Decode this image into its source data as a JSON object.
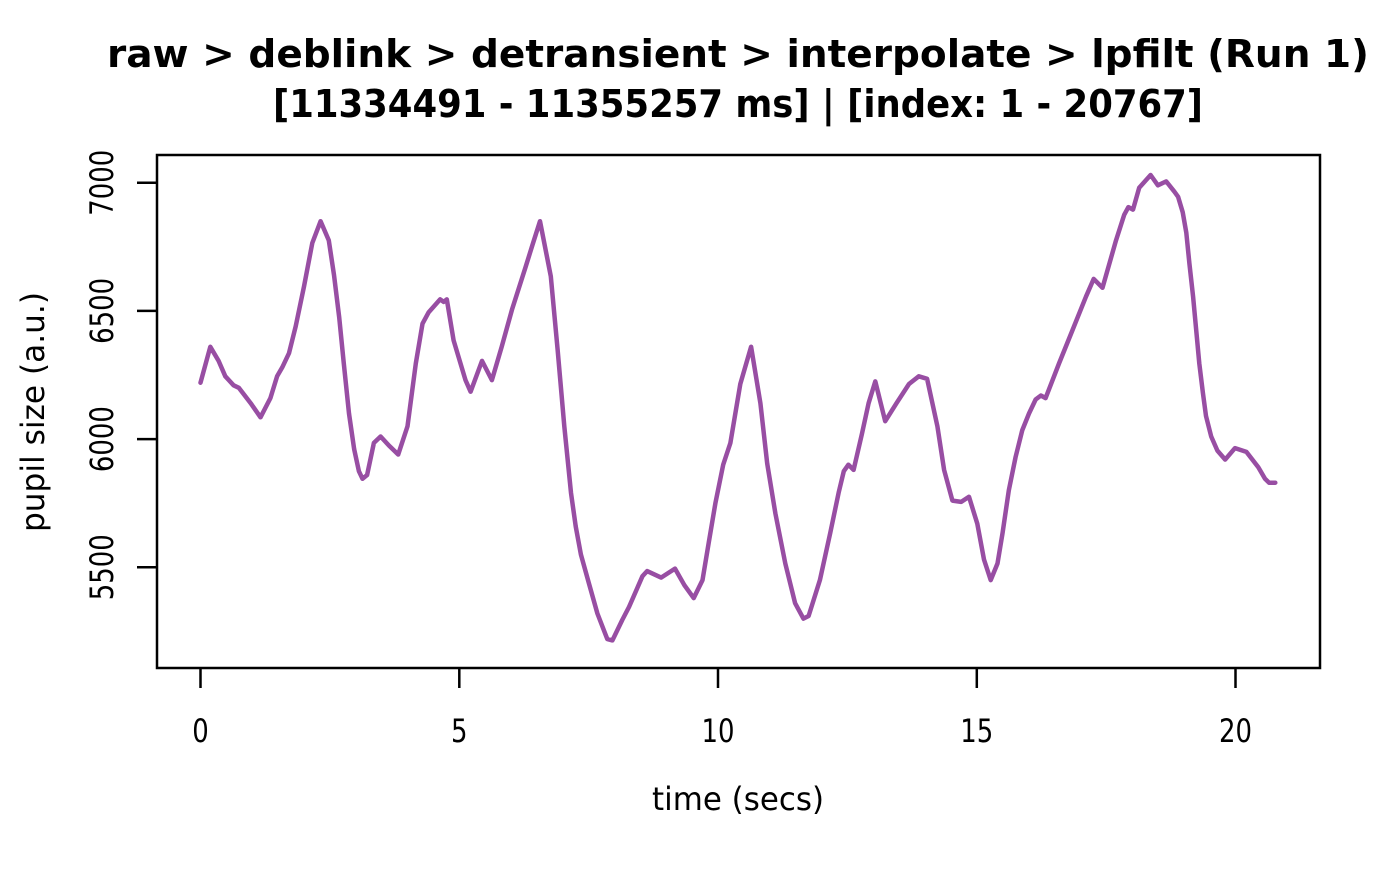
{
  "chart_data": {
    "type": "line",
    "title_line1": "raw > deblink > detransient > interpolate > lpfilt (Run 1)",
    "title_line2": "[11334491 - 11355257 ms] | [index: 1 - 20767]",
    "xlabel": "time (secs)",
    "ylabel": "pupil size (a.u.)",
    "x_ticks": [
      0,
      5,
      10,
      15,
      20
    ],
    "y_ticks": [
      5500,
      6000,
      6500,
      7000
    ],
    "xlim": [
      -0.84,
      21.63
    ],
    "ylim": [
      5107,
      7108
    ],
    "grid": false,
    "legend": "none",
    "line_color": "#984EA3",
    "line_width": 4.5,
    "series": [
      {
        "name": "pupil size",
        "x": [
          0.0,
          0.19,
          0.35,
          0.48,
          0.64,
          0.74,
          0.97,
          1.16,
          1.35,
          1.48,
          1.58,
          1.71,
          1.84,
          2.0,
          2.16,
          2.32,
          2.48,
          2.58,
          2.68,
          2.77,
          2.87,
          2.97,
          3.06,
          3.13,
          3.22,
          3.35,
          3.48,
          3.64,
          3.82,
          4.0,
          4.16,
          4.29,
          4.41,
          4.63,
          4.7,
          4.76,
          4.89,
          5.12,
          5.22,
          5.44,
          5.63,
          5.82,
          6.02,
          6.28,
          6.42,
          6.56,
          6.77,
          6.9,
          7.03,
          7.16,
          7.25,
          7.35,
          7.51,
          7.67,
          7.86,
          7.96,
          8.15,
          8.28,
          8.54,
          8.63,
          8.9,
          9.17,
          9.35,
          9.53,
          9.7,
          9.82,
          9.95,
          10.1,
          10.24,
          10.43,
          10.64,
          10.82,
          10.95,
          11.11,
          11.3,
          11.49,
          11.65,
          11.75,
          11.97,
          12.17,
          12.33,
          12.43,
          12.52,
          12.62,
          12.78,
          12.91,
          13.04,
          13.23,
          13.45,
          13.69,
          13.88,
          14.04,
          14.24,
          14.37,
          14.53,
          14.7,
          14.85,
          15.01,
          15.14,
          15.27,
          15.4,
          15.5,
          15.62,
          15.75,
          15.88,
          16.01,
          16.14,
          16.24,
          16.33,
          16.59,
          16.85,
          17.11,
          17.26,
          17.43,
          17.69,
          17.85,
          17.93,
          18.02,
          18.14,
          18.36,
          18.5,
          18.66,
          18.82,
          18.89,
          18.98,
          19.05,
          19.11,
          19.18,
          19.24,
          19.3,
          19.37,
          19.43,
          19.53,
          19.65,
          19.8,
          19.99,
          20.21,
          20.44,
          20.57,
          20.65,
          20.77
        ],
        "y": [
          6220,
          6360,
          6305,
          6245,
          6210,
          6200,
          6140,
          6085,
          6160,
          6245,
          6280,
          6335,
          6440,
          6595,
          6765,
          6850,
          6775,
          6640,
          6475,
          6295,
          6100,
          5960,
          5875,
          5845,
          5860,
          5985,
          6010,
          5975,
          5940,
          6050,
          6295,
          6450,
          6495,
          6545,
          6535,
          6545,
          6385,
          6230,
          6185,
          6305,
          6230,
          6360,
          6505,
          6670,
          6760,
          6850,
          6635,
          6350,
          6050,
          5790,
          5660,
          5550,
          5435,
          5320,
          5220,
          5215,
          5295,
          5345,
          5465,
          5485,
          5460,
          5495,
          5430,
          5380,
          5450,
          5595,
          5750,
          5900,
          5985,
          6215,
          6360,
          6140,
          5905,
          5710,
          5515,
          5360,
          5300,
          5310,
          5450,
          5635,
          5790,
          5875,
          5900,
          5880,
          6020,
          6140,
          6225,
          6070,
          6140,
          6215,
          6245,
          6235,
          6050,
          5880,
          5760,
          5755,
          5775,
          5670,
          5530,
          5450,
          5515,
          5635,
          5800,
          5930,
          6035,
          6100,
          6155,
          6170,
          6160,
          6295,
          6425,
          6555,
          6625,
          6590,
          6775,
          6875,
          6905,
          6895,
          6980,
          7030,
          6990,
          7005,
          6965,
          6945,
          6885,
          6805,
          6685,
          6555,
          6425,
          6295,
          6180,
          6090,
          6010,
          5955,
          5920,
          5965,
          5950,
          5890,
          5845,
          5830,
          5830
        ]
      }
    ]
  }
}
